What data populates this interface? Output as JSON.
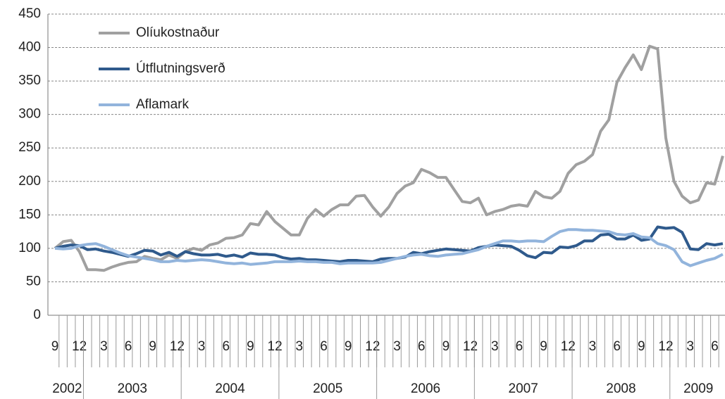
{
  "chart_data": {
    "type": "line",
    "categories": [
      "9",
      null,
      null,
      "12",
      null,
      null,
      "3",
      null,
      null,
      "6",
      null,
      null,
      "9",
      null,
      null,
      "12",
      null,
      null,
      "3",
      null,
      null,
      "6",
      null,
      null,
      "9",
      null,
      null,
      "12",
      null,
      null,
      "3",
      null,
      null,
      "6",
      null,
      null,
      "9",
      null,
      null,
      "12",
      null,
      null,
      "3",
      null,
      null,
      "6",
      null,
      null,
      "9",
      null,
      null,
      "12",
      null,
      null,
      "3",
      null,
      null,
      "6",
      null,
      null,
      "9",
      null,
      null,
      "12",
      null,
      null,
      "3",
      null,
      null,
      "6",
      null,
      null,
      "9",
      null,
      null,
      "12",
      null,
      null,
      "3",
      null,
      null,
      "6",
      null
    ],
    "year_groups": [
      {
        "label": "2002",
        "span": 4
      },
      {
        "label": "2003",
        "span": 12
      },
      {
        "label": "2004",
        "span": 12
      },
      {
        "label": "2005",
        "span": 12
      },
      {
        "label": "2006",
        "span": 12
      },
      {
        "label": "2007",
        "span": 12
      },
      {
        "label": "2008",
        "span": 12
      },
      {
        "label": "2009",
        "span": 7
      }
    ],
    "ylim": [
      0,
      450
    ],
    "yticks": [
      0,
      50,
      100,
      150,
      200,
      250,
      300,
      350,
      400,
      450
    ],
    "grid": true,
    "series": [
      {
        "name": "Olíukostnaður",
        "color": "#a0a0a0",
        "values": [
          100,
          110,
          112,
          95,
          68,
          68,
          67,
          72,
          76,
          79,
          80,
          88,
          85,
          83,
          90,
          85,
          95,
          100,
          97,
          105,
          108,
          115,
          116,
          120,
          137,
          135,
          155,
          140,
          130,
          120,
          120,
          145,
          158,
          148,
          158,
          165,
          165,
          178,
          179,
          162,
          148,
          162,
          182,
          193,
          198,
          218,
          213,
          206,
          206,
          188,
          170,
          168,
          175,
          150,
          155,
          158,
          163,
          165,
          163,
          185,
          177,
          175,
          185,
          212,
          225,
          230,
          240,
          275,
          292,
          348,
          370,
          389,
          367,
          402,
          398,
          265,
          200,
          178,
          168,
          172,
          198,
          196,
          238
        ]
      },
      {
        "name": "Útflutningsverð",
        "color": "#2f5a8c",
        "values": [
          100,
          103,
          105,
          104,
          98,
          99,
          96,
          94,
          91,
          88,
          92,
          97,
          96,
          90,
          94,
          88,
          95,
          92,
          90,
          90,
          91,
          88,
          90,
          87,
          93,
          91,
          91,
          90,
          86,
          84,
          85,
          83,
          83,
          82,
          81,
          80,
          82,
          82,
          81,
          80,
          84,
          85,
          85,
          87,
          94,
          92,
          95,
          97,
          99,
          98,
          97,
          96,
          101,
          103,
          105,
          104,
          103,
          97,
          89,
          86,
          94,
          93,
          102,
          101,
          104,
          111,
          111,
          120,
          121,
          114,
          114,
          120,
          112,
          114,
          132,
          130,
          131,
          124,
          99,
          98,
          107,
          105,
          107
        ]
      },
      {
        "name": "Aflamark",
        "color": "#92b4dc",
        "values": [
          100,
          99,
          100,
          104,
          106,
          107,
          103,
          98,
          93,
          89,
          87,
          85,
          83,
          80,
          80,
          82,
          81,
          82,
          83,
          82,
          80,
          78,
          77,
          78,
          76,
          77,
          78,
          80,
          80,
          80,
          81,
          80,
          80,
          79,
          79,
          77,
          78,
          78,
          78,
          78,
          79,
          82,
          85,
          88,
          90,
          91,
          89,
          88,
          90,
          91,
          92,
          95,
          98,
          103,
          107,
          111,
          111,
          110,
          111,
          111,
          110,
          118,
          125,
          128,
          128,
          127,
          127,
          126,
          125,
          121,
          120,
          122,
          117,
          116,
          107,
          104,
          98,
          80,
          74,
          78,
          82,
          85,
          91
        ]
      }
    ]
  }
}
